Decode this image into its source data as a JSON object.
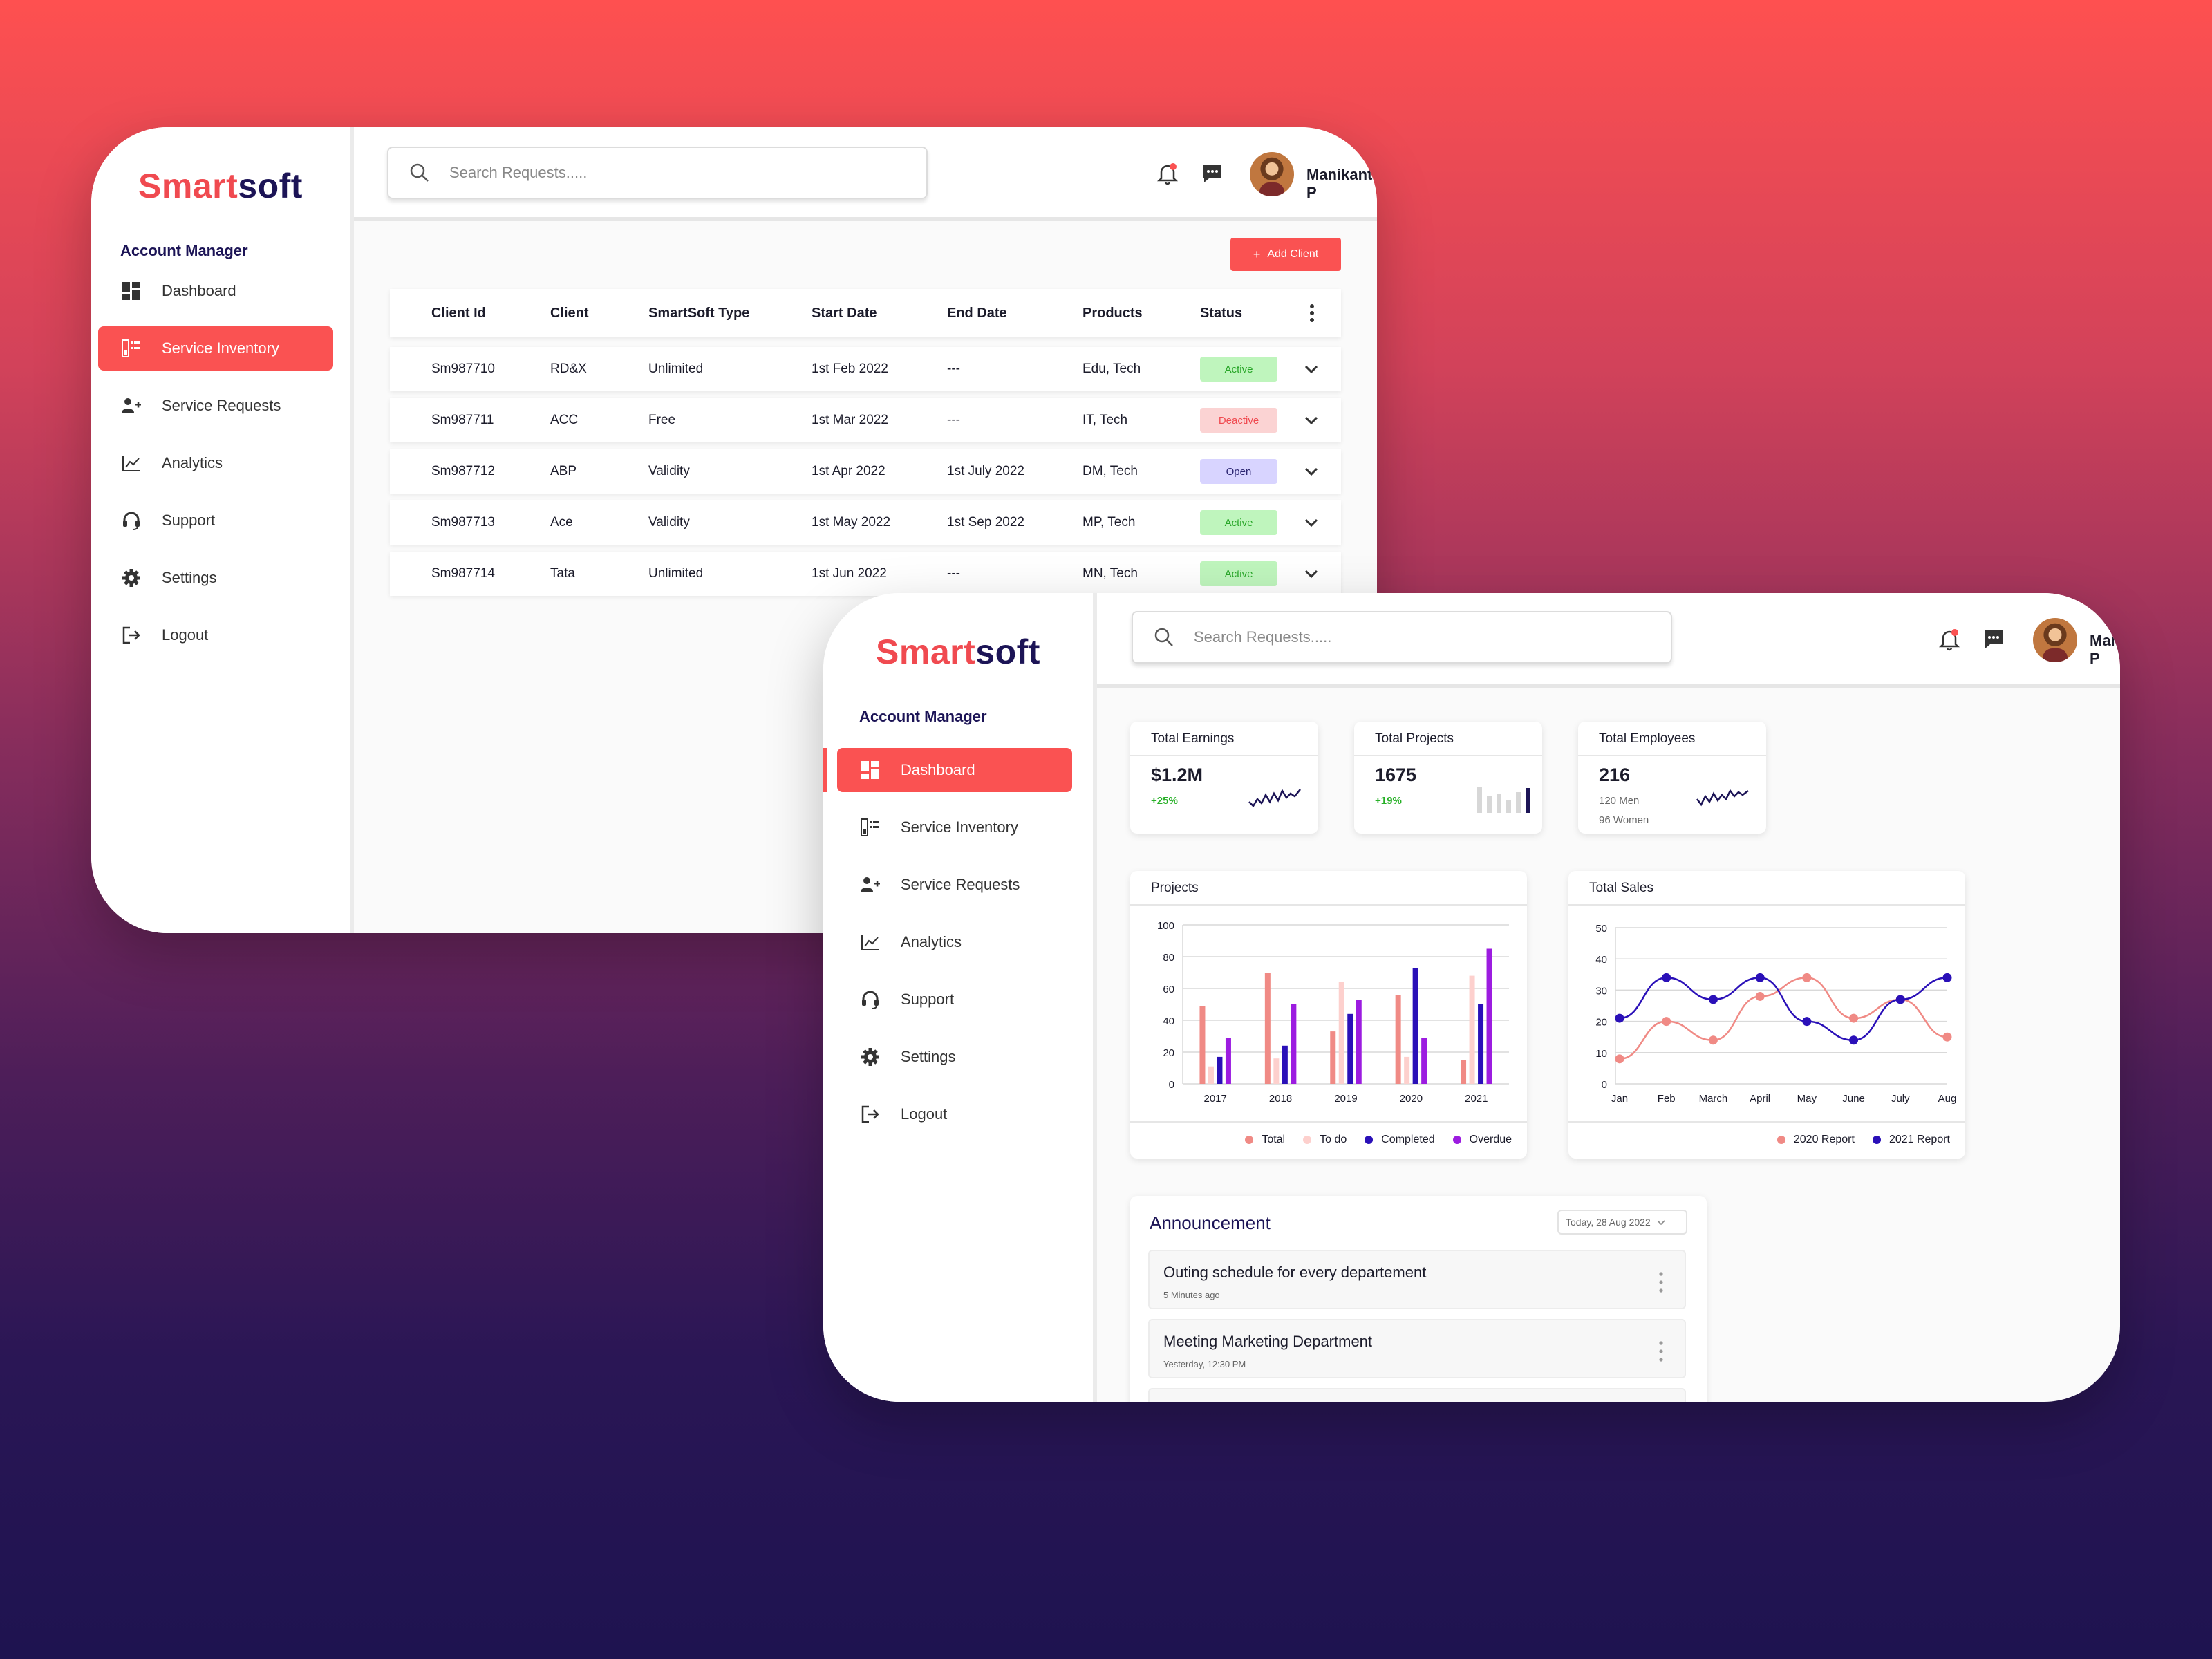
{
  "brand": {
    "part1": "Smart",
    "part2": "soft"
  },
  "colors": {
    "accent": "#fa5252",
    "navy": "#1c1456",
    "green": "#27b027"
  },
  "sidebar": {
    "section_title": "Account Manager",
    "items": [
      {
        "label": "Dashboard",
        "icon": "dashboard-icon"
      },
      {
        "label": "Service Inventory",
        "icon": "inventory-icon"
      },
      {
        "label": "Service Requests",
        "icon": "add-user-icon"
      },
      {
        "label": "Analytics",
        "icon": "analytics-icon"
      },
      {
        "label": "Support",
        "icon": "headset-icon"
      },
      {
        "label": "Settings",
        "icon": "gear-icon"
      },
      {
        "label": "Logout",
        "icon": "logout-icon"
      }
    ]
  },
  "header": {
    "search_placeholder": "Search Requests.....",
    "user_name": "Manikanta P"
  },
  "inventory": {
    "active_item": "Service Inventory",
    "add_button": "Add Client",
    "columns": [
      "Client Id",
      "Client",
      "SmartSoft Type",
      "Start Date",
      "End Date",
      "Products",
      "Status"
    ],
    "rows": [
      {
        "id": "Sm987710",
        "client": "RD&X",
        "type": "Unlimited",
        "start": "1st Feb 2022",
        "end": "---",
        "products": "Edu, Tech",
        "status": "Active"
      },
      {
        "id": "Sm987711",
        "client": "ACC",
        "type": "Free",
        "start": "1st Mar 2022",
        "end": "---",
        "products": "IT, Tech",
        "status": "Deactive"
      },
      {
        "id": "Sm987712",
        "client": "ABP",
        "type": "Validity",
        "start": "1st Apr 2022",
        "end": "1st July 2022",
        "products": "DM, Tech",
        "status": "Open"
      },
      {
        "id": "Sm987713",
        "client": "Ace",
        "type": "Validity",
        "start": "1st May 2022",
        "end": "1st Sep 2022",
        "products": "MP, Tech",
        "status": "Active"
      },
      {
        "id": "Sm987714",
        "client": "Tata",
        "type": "Unlimited",
        "start": "1st Jun 2022",
        "end": "---",
        "products": "MN, Tech",
        "status": "Active"
      }
    ]
  },
  "dashboard": {
    "active_item": "Dashboard",
    "stats": [
      {
        "title": "Total Earnings",
        "value": "$1.2M",
        "change": "+25%"
      },
      {
        "title": "Total Projects",
        "value": "1675",
        "change": "+19%"
      },
      {
        "title": "Total Employees",
        "value": "216",
        "line1": "120 Men",
        "line2": "96 Women"
      }
    ],
    "announcement": {
      "title": "Announcement",
      "date_filter": "Today, 28 Aug 2022",
      "items": [
        {
          "title": "Outing schedule for every departement",
          "time": "5 Minutes ago"
        },
        {
          "title": "Meeting Marketing Department",
          "time": "Yesterday, 12:30 PM"
        }
      ]
    }
  },
  "chart_data": [
    {
      "type": "bar",
      "title": "Projects",
      "categories": [
        "2017",
        "2018",
        "2019",
        "2020",
        "2021"
      ],
      "ylim": [
        0,
        100
      ],
      "yticks": [
        0,
        20,
        40,
        60,
        80,
        100
      ],
      "grid": true,
      "legend_position": "bottom-right",
      "series": [
        {
          "name": "Total",
          "color": "#f08a85",
          "values": [
            49,
            70,
            33,
            56,
            15
          ]
        },
        {
          "name": "To do",
          "color": "#fdd0cd",
          "values": [
            11,
            16,
            64,
            17,
            68
          ]
        },
        {
          "name": "Completed",
          "color": "#2a10b8",
          "values": [
            17,
            24,
            44,
            73,
            50
          ]
        },
        {
          "name": "Overdue",
          "color": "#9c1ce0",
          "values": [
            29,
            50,
            53,
            29,
            85
          ]
        }
      ]
    },
    {
      "type": "line",
      "title": "Total Sales",
      "categories": [
        "Jan",
        "Feb",
        "March",
        "April",
        "May",
        "June",
        "July",
        "Aug"
      ],
      "ylim": [
        0,
        50
      ],
      "yticks": [
        0,
        10,
        20,
        30,
        40,
        50
      ],
      "grid": true,
      "legend_position": "bottom-right",
      "series": [
        {
          "name": "2020 Report",
          "color": "#f08a85",
          "values": [
            8,
            20,
            14,
            28,
            34,
            21,
            27,
            15
          ]
        },
        {
          "name": "2021 Report",
          "color": "#2a10b8",
          "values": [
            21,
            34,
            27,
            34,
            20,
            14,
            27,
            34
          ]
        }
      ]
    }
  ]
}
